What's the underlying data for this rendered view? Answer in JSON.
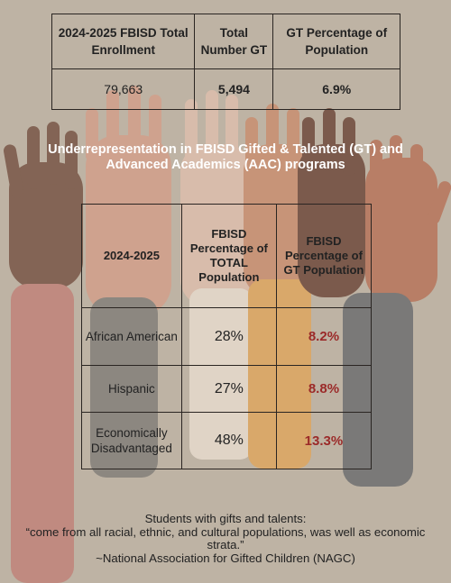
{
  "summary_table": {
    "headers": [
      "2024-2025 FBISD Total Enrollment",
      "Total Number GT",
      "GT Percentage of Population"
    ],
    "values": [
      "79,663",
      "5,494",
      "6.9%"
    ]
  },
  "title": "Underrepresentation in FBISD Gifted & Talented (GT) and Advanced Academics (AAC) programs",
  "detail_table": {
    "headers": [
      "2024-2025",
      "FBISD Percentage of TOTAL Population",
      "FBISD Percentage of GT Population"
    ],
    "rows": [
      {
        "group": "African American",
        "total_pct": "28%",
        "gt_pct": "8.2%"
      },
      {
        "group": "Hispanic",
        "total_pct": "27%",
        "gt_pct": "8.8%"
      },
      {
        "group": "Economically Disadvantaged",
        "total_pct": "48%",
        "gt_pct": "13.3%"
      }
    ]
  },
  "quote": {
    "intro": "Students with gifts and talents:",
    "text": "“come from all racial, ethnic, and cultural populations, was well as economic strata.”",
    "source": "~National Association for Gifted Children (NAGC)"
  },
  "colors": {
    "background": "#beb3a4",
    "title_text": "#ffffff",
    "gt_highlight": "#9b2a29",
    "border": "#2a2522"
  }
}
